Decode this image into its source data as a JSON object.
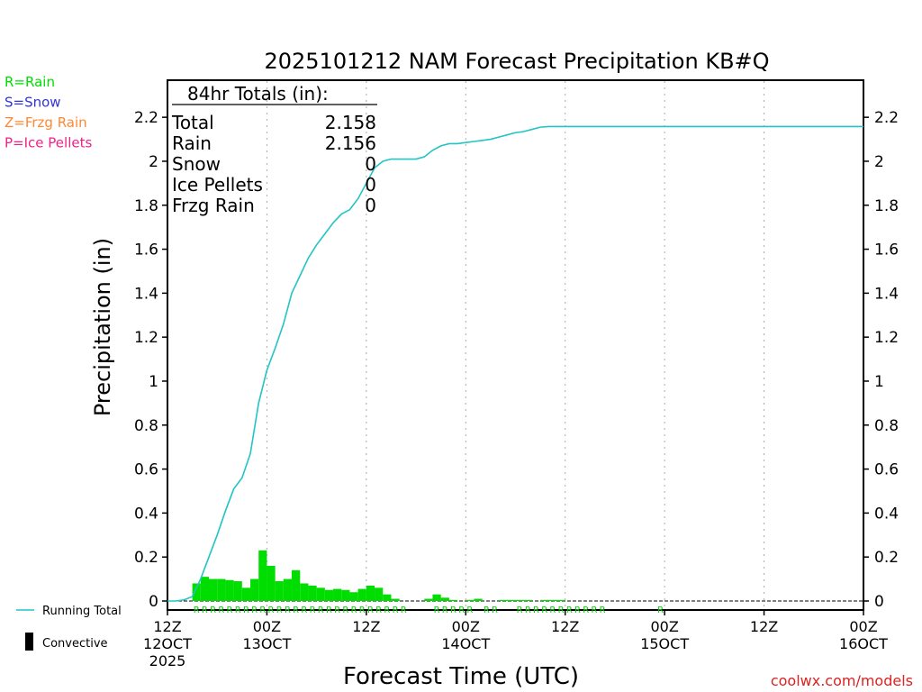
{
  "chart_data": {
    "type": "bar",
    "title": "2025101212 NAM Forecast Precipitation KB#Q",
    "xlabel": "Forecast Time (UTC)",
    "ylabel": "Precipitation (in)",
    "ylim": [
      0,
      2.4
    ],
    "xlim_hours": [
      0,
      84
    ],
    "yticks": [
      "0",
      "0.2",
      "0.4",
      "0.6",
      "0.8",
      "1",
      "1.2",
      "1.4",
      "1.6",
      "1.8",
      "2",
      "2.2"
    ],
    "xticks": [
      {
        "hour": 0,
        "time": "12Z",
        "date": "12OCT",
        "year": "2025"
      },
      {
        "hour": 12,
        "time": "00Z",
        "date": "13OCT"
      },
      {
        "hour": 24,
        "time": "12Z"
      },
      {
        "hour": 36,
        "time": "00Z",
        "date": "14OCT"
      },
      {
        "hour": 48,
        "time": "12Z"
      },
      {
        "hour": 60,
        "time": "00Z",
        "date": "15OCT"
      },
      {
        "hour": 72,
        "time": "12Z"
      },
      {
        "hour": 84,
        "time": "00Z",
        "date": "16OCT"
      }
    ],
    "legend_ptypes": [
      {
        "label": "R=Rain",
        "color": "#00dd00"
      },
      {
        "label": "S=Snow",
        "color": "#3333dd"
      },
      {
        "label": "Z=Frzg Rain",
        "color": "#ff8833"
      },
      {
        "label": "P=Ice Pellets",
        "color": "#ee2288"
      }
    ],
    "totals_box": {
      "title": "84hr Totals (in):",
      "rows": [
        {
          "label": "Total",
          "value": "2.158"
        },
        {
          "label": "Rain",
          "value": "2.156"
        },
        {
          "label": "Snow",
          "value": "0"
        },
        {
          "label": "Ice Pellets",
          "value": "0"
        },
        {
          "label": "Frzg Rain",
          "value": "0"
        }
      ]
    },
    "series": [
      {
        "name": "Running Total",
        "color": "#22c4c4",
        "points": [
          [
            0,
            0
          ],
          [
            1,
            0
          ],
          [
            2,
            0.005
          ],
          [
            3,
            0.02
          ],
          [
            4,
            0.1
          ],
          [
            5,
            0.2
          ],
          [
            6,
            0.3
          ],
          [
            7,
            0.41
          ],
          [
            8,
            0.51
          ],
          [
            9,
            0.56
          ],
          [
            10,
            0.67
          ],
          [
            11,
            0.9
          ],
          [
            12,
            1.05
          ],
          [
            13,
            1.15
          ],
          [
            14,
            1.26
          ],
          [
            15,
            1.4
          ],
          [
            16,
            1.48
          ],
          [
            17,
            1.56
          ],
          [
            18,
            1.62
          ],
          [
            19,
            1.67
          ],
          [
            20,
            1.72
          ],
          [
            21,
            1.76
          ],
          [
            22,
            1.78
          ],
          [
            23,
            1.83
          ],
          [
            24,
            1.9
          ],
          [
            25,
            1.97
          ],
          [
            26,
            2.0
          ],
          [
            27,
            2.01
          ],
          [
            28,
            2.01
          ],
          [
            29,
            2.01
          ],
          [
            30,
            2.01
          ],
          [
            31,
            2.02
          ],
          [
            32,
            2.05
          ],
          [
            33,
            2.07
          ],
          [
            34,
            2.08
          ],
          [
            35,
            2.08
          ],
          [
            36,
            2.085
          ],
          [
            37,
            2.09
          ],
          [
            38,
            2.095
          ],
          [
            39,
            2.1
          ],
          [
            40,
            2.11
          ],
          [
            41,
            2.12
          ],
          [
            42,
            2.13
          ],
          [
            43,
            2.135
          ],
          [
            44,
            2.145
          ],
          [
            45,
            2.155
          ],
          [
            46,
            2.158
          ],
          [
            84,
            2.158
          ]
        ]
      },
      {
        "name": "Hourly Precip",
        "color": "#00dd00",
        "hourly": [
          0,
          0,
          0,
          0.08,
          0.11,
          0.1,
          0.1,
          0.095,
          0.09,
          0.06,
          0.1,
          0.23,
          0.16,
          0.09,
          0.1,
          0.14,
          0.08,
          0.07,
          0.06,
          0.05,
          0.055,
          0.05,
          0.04,
          0.055,
          0.07,
          0.06,
          0.03,
          0.01,
          0,
          0,
          0,
          0.01,
          0.03,
          0.015,
          0.005,
          0,
          0.005,
          0.01,
          0,
          0,
          0.005,
          0.005,
          0.005,
          0.005,
          0,
          0.005,
          0.005,
          0.005,
          0,
          0,
          0,
          0,
          0,
          0,
          0,
          0,
          0,
          0,
          0,
          0,
          0,
          0,
          0,
          0,
          0,
          0,
          0,
          0,
          0,
          0,
          0,
          0,
          0,
          0,
          0,
          0,
          0,
          0,
          0,
          0,
          0,
          0,
          0,
          0
        ]
      }
    ],
    "ptype_row": {
      "rain_hours": [
        3,
        4,
        5,
        6,
        7,
        8,
        9,
        10,
        11,
        12,
        13,
        14,
        15,
        16,
        17,
        18,
        19,
        20,
        21,
        22,
        23,
        24,
        25,
        26,
        27,
        28,
        32,
        33,
        34,
        35,
        36,
        38,
        39,
        42,
        43,
        44,
        45,
        46,
        47,
        48,
        49,
        50,
        51,
        52,
        59
      ]
    },
    "legend_bottom": [
      {
        "label": "Running Total"
      },
      {
        "label": "Convective"
      }
    ],
    "credit": "coolwx.com/models"
  }
}
